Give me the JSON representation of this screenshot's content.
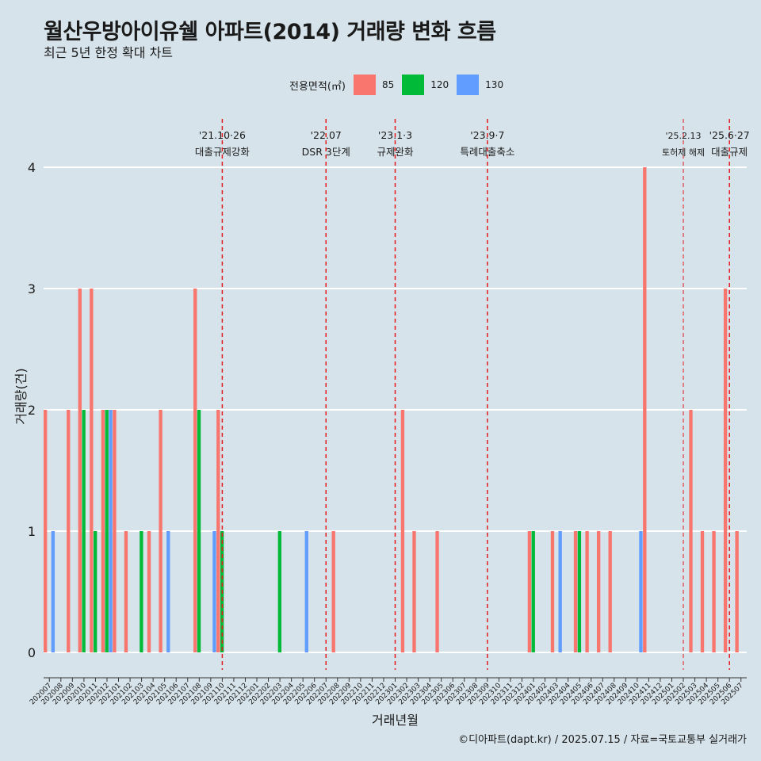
{
  "header": {
    "title": "월산우방아이유쉘 아파트(2014) 거래량 변화 흐름",
    "subtitle": "최근 5년 한정 확대 차트"
  },
  "legend": {
    "title": "전용면적(㎡)",
    "items": [
      {
        "label": "85",
        "color": "#f8766d"
      },
      {
        "label": "120",
        "color": "#00ba38"
      },
      {
        "label": "130",
        "color": "#619cff"
      }
    ]
  },
  "caption": "©디아파트(dapt.kr) / 2025.07.15 / 자료=국토교통부 실거래가",
  "chart_data": {
    "type": "bar",
    "xlabel": "거래년월",
    "ylabel": "거래량(건)",
    "ylim": [
      0,
      4
    ],
    "yticks": [
      0,
      1,
      2,
      3,
      4
    ],
    "grid": true,
    "legend_position": "top",
    "categories": [
      "202007",
      "202008",
      "202009",
      "202010",
      "202011",
      "202012",
      "202101",
      "202102",
      "202103",
      "202104",
      "202105",
      "202106",
      "202107",
      "202108",
      "202109",
      "202110",
      "202111",
      "202112",
      "202201",
      "202202",
      "202203",
      "202204",
      "202205",
      "202206",
      "202207",
      "202208",
      "202209",
      "202210",
      "202211",
      "202212",
      "202301",
      "202302",
      "202303",
      "202304",
      "202305",
      "202306",
      "202307",
      "202308",
      "202309",
      "202310",
      "202311",
      "202312",
      "202401",
      "202402",
      "202403",
      "202404",
      "202405",
      "202406",
      "202407",
      "202408",
      "202409",
      "202410",
      "202411",
      "202412",
      "202501",
      "202502",
      "202503",
      "202504",
      "202505",
      "202506",
      "202507"
    ],
    "series": [
      {
        "name": "85",
        "color": "#f8766d",
        "values": [
          2,
          0,
          2,
          3,
          3,
          2,
          2,
          1,
          0,
          1,
          2,
          0,
          0,
          3,
          0,
          2,
          0,
          0,
          0,
          0,
          0,
          0,
          0,
          0,
          0,
          1,
          0,
          0,
          0,
          0,
          0,
          2,
          1,
          0,
          1,
          0,
          0,
          0,
          0,
          0,
          0,
          0,
          1,
          0,
          1,
          0,
          1,
          1,
          1,
          1,
          0,
          0,
          4,
          0,
          0,
          0,
          2,
          1,
          1,
          3,
          1
        ]
      },
      {
        "name": "120",
        "color": "#00ba38",
        "values": [
          0,
          0,
          0,
          2,
          1,
          2,
          0,
          0,
          1,
          0,
          0,
          0,
          0,
          2,
          0,
          1,
          0,
          0,
          0,
          0,
          1,
          0,
          0,
          0,
          0,
          0,
          0,
          0,
          0,
          0,
          0,
          0,
          0,
          0,
          0,
          0,
          0,
          0,
          0,
          0,
          0,
          0,
          1,
          0,
          0,
          0,
          1,
          0,
          0,
          0,
          0,
          0,
          0,
          0,
          0,
          0,
          0,
          0,
          0,
          0,
          0
        ]
      },
      {
        "name": "130",
        "color": "#619cff",
        "values": [
          1,
          0,
          0,
          0,
          0,
          2,
          0,
          0,
          0,
          0,
          1,
          0,
          0,
          0,
          1,
          0,
          0,
          0,
          0,
          0,
          0,
          0,
          1,
          0,
          0,
          0,
          0,
          0,
          0,
          0,
          0,
          0,
          0,
          0,
          0,
          0,
          0,
          0,
          0,
          0,
          0,
          0,
          0,
          0,
          1,
          0,
          0,
          0,
          0,
          0,
          0,
          1,
          0,
          0,
          0,
          0,
          0,
          0,
          0,
          0,
          0
        ]
      }
    ],
    "events": [
      {
        "x": "202110",
        "date": "'21.10·26",
        "label": "대출규제강화"
      },
      {
        "x": "202207",
        "date": "'22.07",
        "label": "DSR 3단계"
      },
      {
        "x": "202301",
        "date": "'23.1·3",
        "label": "규제완화"
      },
      {
        "x": "202309",
        "date": "'23.9·7",
        "label": "특례대출축소"
      },
      {
        "x": "202502",
        "date": "'25.2.13",
        "label": "토허제 해제"
      },
      {
        "x": "202506",
        "date": "'25.6·27",
        "label": "대출규제"
      }
    ]
  }
}
